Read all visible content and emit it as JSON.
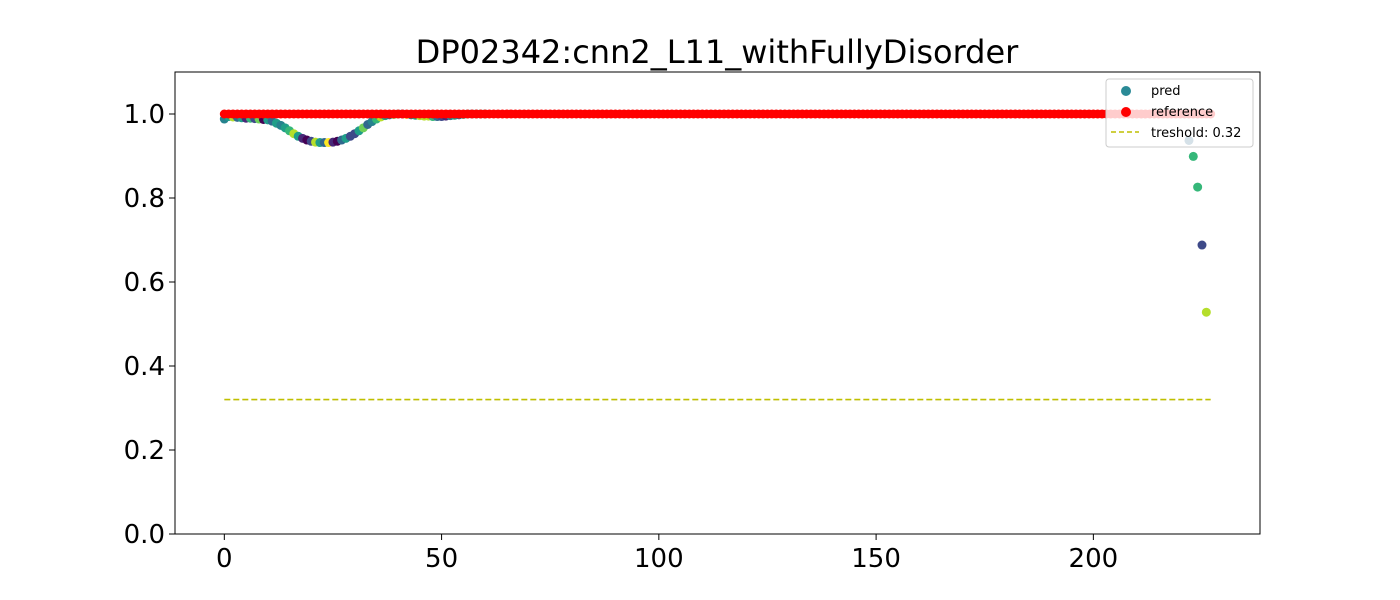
{
  "chart_data": {
    "type": "scatter",
    "title": "DP02342:cnn2_L11_withFullyDisorder",
    "xlabel": "",
    "ylabel": "",
    "xlim": [
      -11.35,
      238.35
    ],
    "ylim": [
      0.0,
      1.1
    ],
    "x_ticks": [
      0,
      50,
      100,
      150,
      200
    ],
    "y_ticks": [
      0.0,
      0.2,
      0.4,
      0.6,
      0.8,
      1.0
    ],
    "x_tick_labels": [
      "0",
      "50",
      "100",
      "150",
      "200"
    ],
    "y_tick_labels": [
      "0.0",
      "0.2",
      "0.4",
      "0.6",
      "0.8",
      "1.0"
    ],
    "grid": false,
    "legend_position": "top-right",
    "legend": {
      "pred": "pred",
      "reference": "reference",
      "threshold": "treshold: 0.32"
    },
    "threshold": {
      "value": 0.32,
      "x_range": [
        0,
        227
      ],
      "color": "#bfbf00"
    },
    "series": [
      {
        "name": "pred",
        "colormap": "viridis",
        "x": [
          0,
          1,
          2,
          3,
          4,
          5,
          6,
          7,
          8,
          9,
          10,
          11,
          12,
          13,
          14,
          15,
          16,
          17,
          18,
          19,
          20,
          21,
          22,
          23,
          24,
          25,
          26,
          27,
          28,
          29,
          30,
          31,
          32,
          33,
          34,
          35,
          36,
          37,
          38,
          39,
          40,
          41,
          42,
          43,
          44,
          45,
          46,
          47,
          48,
          49,
          50,
          51,
          52,
          53,
          54,
          55,
          56,
          57,
          58,
          59,
          60,
          222,
          223,
          224,
          225,
          226
        ],
        "y": [
          0.988,
          0.994,
          0.993,
          0.992,
          0.991,
          0.99,
          0.99,
          0.989,
          0.988,
          0.987,
          0.986,
          0.983,
          0.978,
          0.973,
          0.967,
          0.96,
          0.953,
          0.947,
          0.942,
          0.938,
          0.935,
          0.933,
          0.932,
          0.932,
          0.932,
          0.933,
          0.935,
          0.938,
          0.942,
          0.947,
          0.953,
          0.96,
          0.967,
          0.975,
          0.982,
          0.988,
          0.993,
          0.996,
          0.998,
          0.999,
          1.0,
          1.0,
          0.999,
          0.998,
          0.997,
          0.996,
          0.995,
          0.995,
          0.994,
          0.994,
          0.994,
          0.995,
          0.996,
          0.997,
          0.998,
          0.999,
          1.0,
          1.0,
          1.0,
          1.0,
          1.0,
          0.937,
          0.899,
          0.826,
          0.688,
          0.528
        ],
        "c": [
          0.4,
          0.6,
          0.9,
          0.3,
          0.5,
          0.1,
          0.7,
          0.2,
          0.8,
          0.0,
          0.5,
          0.3,
          0.6,
          0.45,
          0.55,
          0.7,
          0.85,
          0.6,
          0.1,
          0.05,
          0.2,
          0.9,
          0.6,
          0.35,
          0.95,
          0.1,
          0.05,
          0.3,
          0.5,
          0.2,
          0.25,
          0.6,
          0.8,
          0.3,
          0.4,
          0.7,
          0.9,
          0.5,
          0.3,
          0.8,
          0.6,
          0.2,
          0.95,
          0.4,
          0.5,
          0.9,
          0.85,
          0.9,
          0.7,
          0.3,
          0.2,
          0.1,
          0.4,
          0.5,
          0.3,
          0.6,
          0.5,
          0.4,
          0.6,
          0.7,
          0.5,
          0.35,
          0.65,
          0.7,
          0.25,
          0.85
        ]
      },
      {
        "name": "reference",
        "color": "#ff0000",
        "x_range": [
          0,
          227
        ],
        "value": 1.0
      }
    ]
  }
}
